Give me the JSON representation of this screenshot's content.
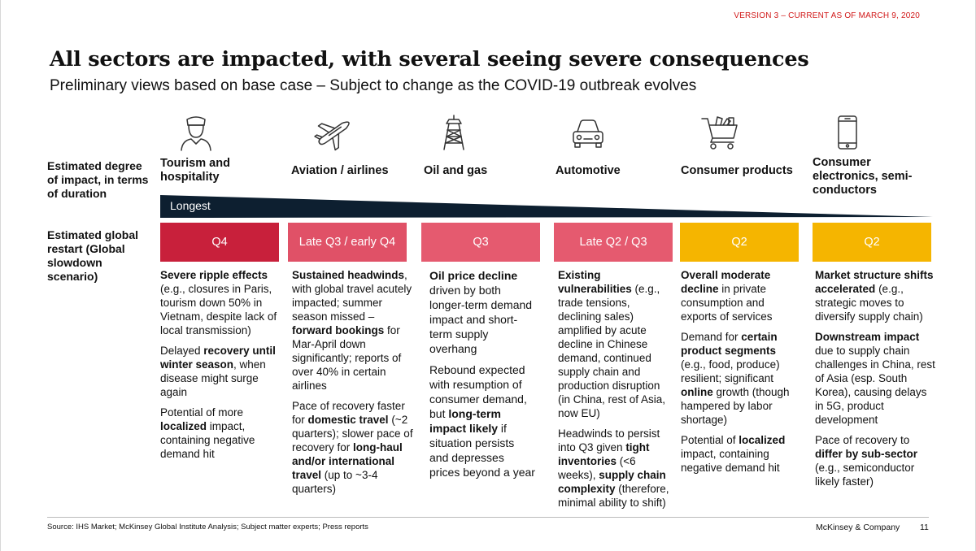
{
  "header": {
    "version": "VERSION 3 – CURRENT AS OF MARCH 9, 2020",
    "title": "All sectors are impacted, with several seeing severe consequences",
    "subtitle": "Preliminary views based on base case – Subject to change as the COVID-19 outbreak evolves"
  },
  "row_labels": {
    "impact": "Estimated degree of impact, in terms of duration",
    "restart": "Estimated global restart (Global slowdown scenario)"
  },
  "duration_scale": {
    "label": "Longest"
  },
  "colors": {
    "q4": "#c8203b",
    "late_q3": "#e05167",
    "q3": "#e55a6f",
    "late_q2": "#e55a6f",
    "q2": "#f5b500",
    "wedge": "#0d1f30",
    "version_text": "#d11919"
  },
  "sectors": [
    {
      "icon": "hotel-staff-icon",
      "name": "Tourism and hospitality",
      "restart": "Q4",
      "paragraphs": [
        [
          {
            "t": "Severe ripple effects",
            "b": true
          },
          {
            "t": " (e.g., closures in Paris, tourism down 50% in Vietnam, despite lack of local transmission)",
            "b": false
          }
        ],
        [
          {
            "t": "Delayed ",
            "b": false
          },
          {
            "t": "recovery until winter season",
            "b": true
          },
          {
            "t": ", when disease might surge again",
            "b": false
          }
        ],
        [
          {
            "t": "Potential of more ",
            "b": false
          },
          {
            "t": "localized",
            "b": true
          },
          {
            "t": " impact, containing negative demand hit",
            "b": false
          }
        ]
      ]
    },
    {
      "icon": "airplane-icon",
      "name": "Aviation / airlines",
      "restart": "Late Q3 / early Q4",
      "paragraphs": [
        [
          {
            "t": "Sustained headwinds",
            "b": true
          },
          {
            "t": ", with global travel acutely impacted; summer season missed – ",
            "b": false
          },
          {
            "t": "forward bookings",
            "b": true
          },
          {
            "t": " for Mar-April down significantly; reports of over 40% in certain airlines",
            "b": false
          }
        ],
        [
          {
            "t": "Pace of recovery faster for ",
            "b": false
          },
          {
            "t": "domestic travel",
            "b": true
          },
          {
            "t": " (~2 quarters); slower pace of recovery for ",
            "b": false
          },
          {
            "t": "long-haul and/or international travel",
            "b": true
          },
          {
            "t": " (up to ~3-4 quarters)",
            "b": false
          }
        ]
      ]
    },
    {
      "icon": "oil-rig-icon",
      "name": "Oil and gas",
      "restart": "Q3",
      "paragraphs": [
        [
          {
            "t": "Oil price decline",
            "b": true
          },
          {
            "t": " driven by both longer-term demand impact and short-term supply overhang",
            "b": false
          }
        ],
        [
          {
            "t": "Rebound expected with resumption of consumer demand, but ",
            "b": false
          },
          {
            "t": "long-term impact likely",
            "b": true
          },
          {
            "t": " if situation persists and depresses prices beyond a year",
            "b": false
          }
        ]
      ]
    },
    {
      "icon": "car-icon",
      "name": "Automotive",
      "restart": "Late Q2 / Q3",
      "paragraphs": [
        [
          {
            "t": "Existing vulnerabilities",
            "b": true
          },
          {
            "t": " (e.g., trade tensions, declining sales) amplified by acute decline in Chinese demand, continued supply chain and production disruption (in China, rest of Asia, now EU)",
            "b": false
          }
        ],
        [
          {
            "t": "Headwinds to persist into Q3 given ",
            "b": false
          },
          {
            "t": "tight inventories",
            "b": true
          },
          {
            "t": " (<6 weeks), ",
            "b": false
          },
          {
            "t": "supply chain complexity",
            "b": true
          },
          {
            "t": " (therefore, minimal ability to shift)",
            "b": false
          }
        ]
      ]
    },
    {
      "icon": "shopping-cart-icon",
      "name": "Consumer products",
      "restart": "Q2",
      "paragraphs": [
        [
          {
            "t": "Overall moderate decline",
            "b": true
          },
          {
            "t": " in private consumption and exports of services",
            "b": false
          }
        ],
        [
          {
            "t": "Demand for ",
            "b": false
          },
          {
            "t": "certain product segments",
            "b": true
          },
          {
            "t": " (e.g., food, produce) resilient; significant ",
            "b": false
          },
          {
            "t": "online",
            "b": true
          },
          {
            "t": " growth (though hampered by labor shortage)",
            "b": false
          }
        ],
        [
          {
            "t": "Potential of ",
            "b": false
          },
          {
            "t": "localized",
            "b": true
          },
          {
            "t": " impact, containing negative demand hit",
            "b": false
          }
        ]
      ]
    },
    {
      "icon": "smartphone-icon",
      "name": "Consumer electronics, semi-conductors",
      "restart": "Q2",
      "paragraphs": [
        [
          {
            "t": "Market structure shifts accelerated",
            "b": true
          },
          {
            "t": " (e.g., strategic moves to diversify supply chain)",
            "b": false
          }
        ],
        [
          {
            "t": "Downstream impact",
            "b": true
          },
          {
            "t": " due to supply chain challenges in China, rest of Asia (esp. South Korea), causing delays in 5G, product development",
            "b": false
          }
        ],
        [
          {
            "t": "Pace of recovery to ",
            "b": false
          },
          {
            "t": "differ by sub-sector",
            "b": true
          },
          {
            "t": " (e.g., semiconductor likely faster)",
            "b": false
          }
        ]
      ]
    }
  ],
  "footer": {
    "source": "Source: IHS Market; McKinsey Global Institute Analysis; Subject matter experts; Press reports",
    "brand": "McKinsey & Company",
    "page": "11"
  }
}
